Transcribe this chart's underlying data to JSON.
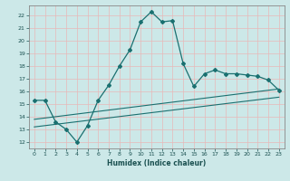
{
  "xlabel": "Humidex (Indice chaleur)",
  "bg_color": "#cce8e8",
  "grid_color": "#b0d0d0",
  "line_color": "#1a7070",
  "xlim": [
    -0.5,
    23.5
  ],
  "ylim": [
    11.5,
    22.8
  ],
  "xticks": [
    0,
    1,
    2,
    3,
    4,
    5,
    6,
    7,
    8,
    9,
    10,
    11,
    12,
    13,
    14,
    15,
    16,
    17,
    18,
    19,
    20,
    21,
    22,
    23
  ],
  "yticks": [
    12,
    13,
    14,
    15,
    16,
    17,
    18,
    19,
    20,
    21,
    22
  ],
  "curve1_x": [
    0,
    1,
    2,
    3,
    4,
    5,
    6,
    7,
    8,
    9,
    10,
    11,
    12,
    13,
    14,
    15,
    16,
    17,
    18,
    19,
    20,
    21,
    22,
    23
  ],
  "curve1_y": [
    15.3,
    15.3,
    13.6,
    13.0,
    12.0,
    13.3,
    15.3,
    16.5,
    18.0,
    19.3,
    21.5,
    22.3,
    21.5,
    21.6,
    18.2,
    16.4,
    17.4,
    17.7,
    17.4,
    17.4,
    17.3,
    17.2,
    16.9,
    16.1
  ],
  "line1_x": [
    0,
    23
  ],
  "line1_y": [
    13.8,
    16.2
  ],
  "line2_x": [
    0,
    23
  ],
  "line2_y": [
    13.2,
    15.55
  ]
}
